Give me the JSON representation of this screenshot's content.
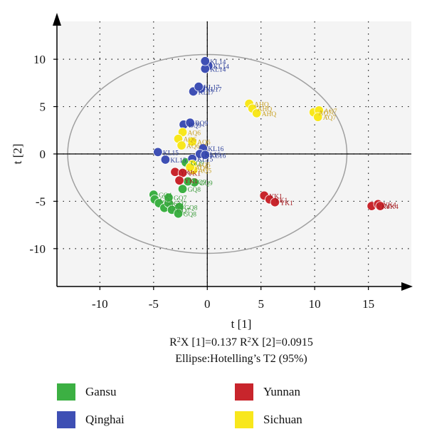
{
  "chart_data": {
    "type": "scatter",
    "xlabel": "t [1]",
    "ylabel": "t [2]",
    "x_ticks": [
      -10,
      -5,
      0,
      5,
      10,
      15
    ],
    "y_ticks": [
      10,
      5,
      0,
      -5,
      -10
    ],
    "x_tick_labels": [
      "-10",
      "-5",
      "0",
      "5",
      "10",
      "15"
    ],
    "y_tick_labels": [
      "10",
      "5",
      "0",
      "-5",
      "-10"
    ],
    "xlim": [
      -14,
      19
    ],
    "ylim": [
      -14,
      14
    ],
    "grid": "dotted",
    "ellipse": {
      "center": [
        0,
        0
      ],
      "rx": 13,
      "ry": 10.5
    },
    "caption_parts": {
      "r2x": "R",
      "sup": "2",
      "x1": "X [1]=0.137 R",
      "x2": "X [2]=0.0915"
    },
    "caption_line2": "Ellipse:Hotelling’s T2 (95%)",
    "legend_position": "bottom",
    "series": [
      {
        "name": "Gansu",
        "color": "#3cb043",
        "label_color": "#3a9a3a",
        "points": [
          {
            "x": -5.0,
            "y": -4.3,
            "label": "GQ4"
          },
          {
            "x": -4.9,
            "y": -4.8,
            "label": "GQ4"
          },
          {
            "x": -4.5,
            "y": -5.2,
            "label": "GQ6"
          },
          {
            "x": -4.0,
            "y": -5.7,
            "label": "GQ6"
          },
          {
            "x": -3.6,
            "y": -5.2,
            "label": "GQ7"
          },
          {
            "x": -3.3,
            "y": -5.9,
            "label": "GQ7"
          },
          {
            "x": -3.6,
            "y": -4.6,
            "label": "GQ7"
          },
          {
            "x": -2.6,
            "y": -5.6,
            "label": "GQ8"
          },
          {
            "x": -2.7,
            "y": -6.3,
            "label": "GQ8"
          },
          {
            "x": -2.3,
            "y": -3.7,
            "label": "GQ8"
          },
          {
            "x": -1.2,
            "y": -3.0,
            "label": "GQ9"
          },
          {
            "x": -1.8,
            "y": -2.9,
            "label": "GQ9"
          },
          {
            "x": -2.0,
            "y": -0.9,
            "label": "GQ9"
          }
        ]
      },
      {
        "name": "Qinghai",
        "color": "#3e4fb4",
        "label_color": "#2a3d99",
        "points": [
          {
            "x": 0.1,
            "y": 9.3,
            "label": "KL14"
          },
          {
            "x": -0.2,
            "y": 9.0,
            "label": "KL14"
          },
          {
            "x": -0.2,
            "y": 9.8,
            "label": "KL14"
          },
          {
            "x": -0.6,
            "y": 6.9,
            "label": "KL17"
          },
          {
            "x": -1.3,
            "y": 6.6,
            "label": "KL17"
          },
          {
            "x": -0.8,
            "y": 7.1,
            "label": "KL17"
          },
          {
            "x": -2.2,
            "y": 3.1,
            "label": "BQ9"
          },
          {
            "x": -1.6,
            "y": 3.3,
            "label": "BQ9"
          },
          {
            "x": -0.4,
            "y": 0.6,
            "label": "KL16"
          },
          {
            "x": -0.7,
            "y": 0.0,
            "label": "KL16"
          },
          {
            "x": -0.2,
            "y": -0.1,
            "label": "KL16"
          },
          {
            "x": -4.6,
            "y": 0.2,
            "label": "KL15"
          },
          {
            "x": -3.9,
            "y": -0.6,
            "label": "KL15"
          },
          {
            "x": -1.4,
            "y": -0.5,
            "label": "KL15"
          }
        ]
      },
      {
        "name": "Yunnan",
        "color": "#c8252c",
        "label_color": "#a51d22",
        "points": [
          {
            "x": -3.0,
            "y": -1.9,
            "label": "YK1"
          },
          {
            "x": -2.3,
            "y": -2.0,
            "label": "YK1"
          },
          {
            "x": -2.6,
            "y": -2.8,
            "label": "YK1"
          },
          {
            "x": 5.3,
            "y": -4.4,
            "label": "YK1"
          },
          {
            "x": 5.8,
            "y": -4.8,
            "label": "YK1"
          },
          {
            "x": 6.3,
            "y": -5.1,
            "label": "YK1"
          },
          {
            "x": 15.3,
            "y": -5.5,
            "label": "YK4"
          },
          {
            "x": 15.9,
            "y": -5.3,
            "label": "YK4"
          },
          {
            "x": 16.1,
            "y": -5.5,
            "label": "YK4"
          }
        ]
      },
      {
        "name": "Sichuan",
        "color": "#f8e71c",
        "label_color": "#c9a227",
        "points": [
          {
            "x": 3.9,
            "y": 5.3,
            "label": "AHQ"
          },
          {
            "x": 4.2,
            "y": 4.8,
            "label": "AHQ"
          },
          {
            "x": 4.6,
            "y": 4.3,
            "label": "AHQ"
          },
          {
            "x": 9.9,
            "y": 4.4,
            "label": "AQ7"
          },
          {
            "x": 10.4,
            "y": 4.6,
            "label": "AQ7"
          },
          {
            "x": 10.3,
            "y": 3.9,
            "label": "AQ7"
          },
          {
            "x": -2.3,
            "y": 2.3,
            "label": "AQ6"
          },
          {
            "x": -1.4,
            "y": 1.3,
            "label": "AQ6"
          },
          {
            "x": -2.7,
            "y": 1.6,
            "label": "AQ6"
          },
          {
            "x": -2.4,
            "y": 0.9,
            "label": "AQ6"
          },
          {
            "x": -1.4,
            "y": -1.1,
            "label": "AQ5"
          },
          {
            "x": -1.3,
            "y": -1.7,
            "label": "AQ5"
          },
          {
            "x": -1.6,
            "y": -1.4,
            "label": "AQ5"
          }
        ]
      }
    ]
  }
}
